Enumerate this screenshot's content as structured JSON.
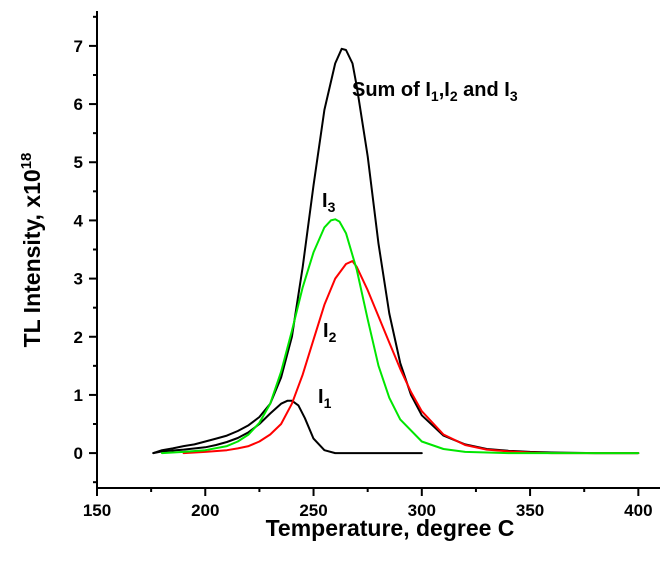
{
  "chart_data": {
    "type": "line",
    "xlabel": "Temperature, degree C",
    "ylabel": {
      "text": "TL Intensity, x10",
      "exp": "18"
    },
    "xlim": [
      150,
      410
    ],
    "ylim": [
      -0.6,
      7.6
    ],
    "xticks": [
      150,
      200,
      250,
      300,
      350,
      400
    ],
    "yticks": [
      0,
      1,
      2,
      3,
      4,
      5,
      6,
      7
    ],
    "grid": false,
    "legend": "none",
    "annotations": {
      "sum": {
        "pre": "Sum of I",
        "s1": "1",
        "mid1": ",I",
        "s2": "2",
        "mid2": " and I",
        "s3": "3"
      },
      "i1": {
        "base": "I",
        "sub": "1"
      },
      "i2": {
        "base": "I",
        "sub": "2"
      },
      "i3": {
        "base": "I",
        "sub": "3"
      }
    },
    "series": [
      {
        "key": "sum",
        "color": "#000000",
        "x": [
          176,
          180,
          185,
          190,
          195,
          200,
          205,
          210,
          215,
          220,
          225,
          230,
          235,
          240,
          245,
          250,
          255,
          260,
          263,
          265,
          268,
          270,
          275,
          280,
          285,
          290,
          295,
          300,
          310,
          320,
          330,
          340,
          350,
          360,
          380,
          400
        ],
        "y": [
          0.0,
          0.05,
          0.08,
          0.12,
          0.15,
          0.2,
          0.25,
          0.3,
          0.38,
          0.48,
          0.62,
          0.85,
          1.3,
          2.0,
          3.2,
          4.6,
          5.9,
          6.7,
          6.95,
          6.93,
          6.7,
          6.3,
          5.1,
          3.6,
          2.4,
          1.55,
          1.0,
          0.65,
          0.3,
          0.15,
          0.07,
          0.04,
          0.02,
          0.01,
          0.0,
          0.0
        ]
      },
      {
        "key": "i1",
        "color": "#000000",
        "x": [
          176,
          180,
          190,
          200,
          205,
          210,
          215,
          220,
          225,
          230,
          235,
          238,
          240,
          243,
          246,
          250,
          255,
          260,
          270,
          280,
          300
        ],
        "y": [
          0.0,
          0.03,
          0.06,
          0.1,
          0.14,
          0.19,
          0.26,
          0.36,
          0.5,
          0.68,
          0.85,
          0.9,
          0.9,
          0.82,
          0.6,
          0.25,
          0.05,
          0.0,
          0.0,
          0.0,
          0.0
        ]
      },
      {
        "key": "i2",
        "color": "#ff0000",
        "x": [
          190,
          200,
          210,
          215,
          220,
          225,
          230,
          235,
          240,
          245,
          250,
          255,
          260,
          265,
          268,
          270,
          275,
          280,
          285,
          290,
          295,
          300,
          310,
          320,
          330,
          340,
          350,
          360,
          380,
          400
        ],
        "y": [
          0.0,
          0.02,
          0.05,
          0.08,
          0.12,
          0.2,
          0.32,
          0.5,
          0.85,
          1.35,
          1.95,
          2.55,
          3.0,
          3.25,
          3.3,
          3.2,
          2.8,
          2.35,
          1.9,
          1.45,
          1.05,
          0.72,
          0.32,
          0.14,
          0.06,
          0.03,
          0.01,
          0.0,
          0.0,
          0.0
        ]
      },
      {
        "key": "i3",
        "color": "#00e600",
        "x": [
          180,
          190,
          200,
          210,
          215,
          220,
          225,
          230,
          235,
          240,
          245,
          250,
          255,
          258,
          260,
          262,
          265,
          270,
          275,
          280,
          285,
          290,
          300,
          310,
          320,
          330,
          340,
          350,
          360,
          380,
          400
        ],
        "y": [
          0.0,
          0.02,
          0.05,
          0.12,
          0.2,
          0.32,
          0.52,
          0.85,
          1.4,
          2.1,
          2.85,
          3.45,
          3.88,
          4.0,
          4.02,
          3.98,
          3.78,
          3.15,
          2.3,
          1.5,
          0.95,
          0.58,
          0.2,
          0.07,
          0.02,
          0.01,
          0.0,
          0.0,
          0.0,
          0.0,
          0.0
        ]
      }
    ]
  }
}
